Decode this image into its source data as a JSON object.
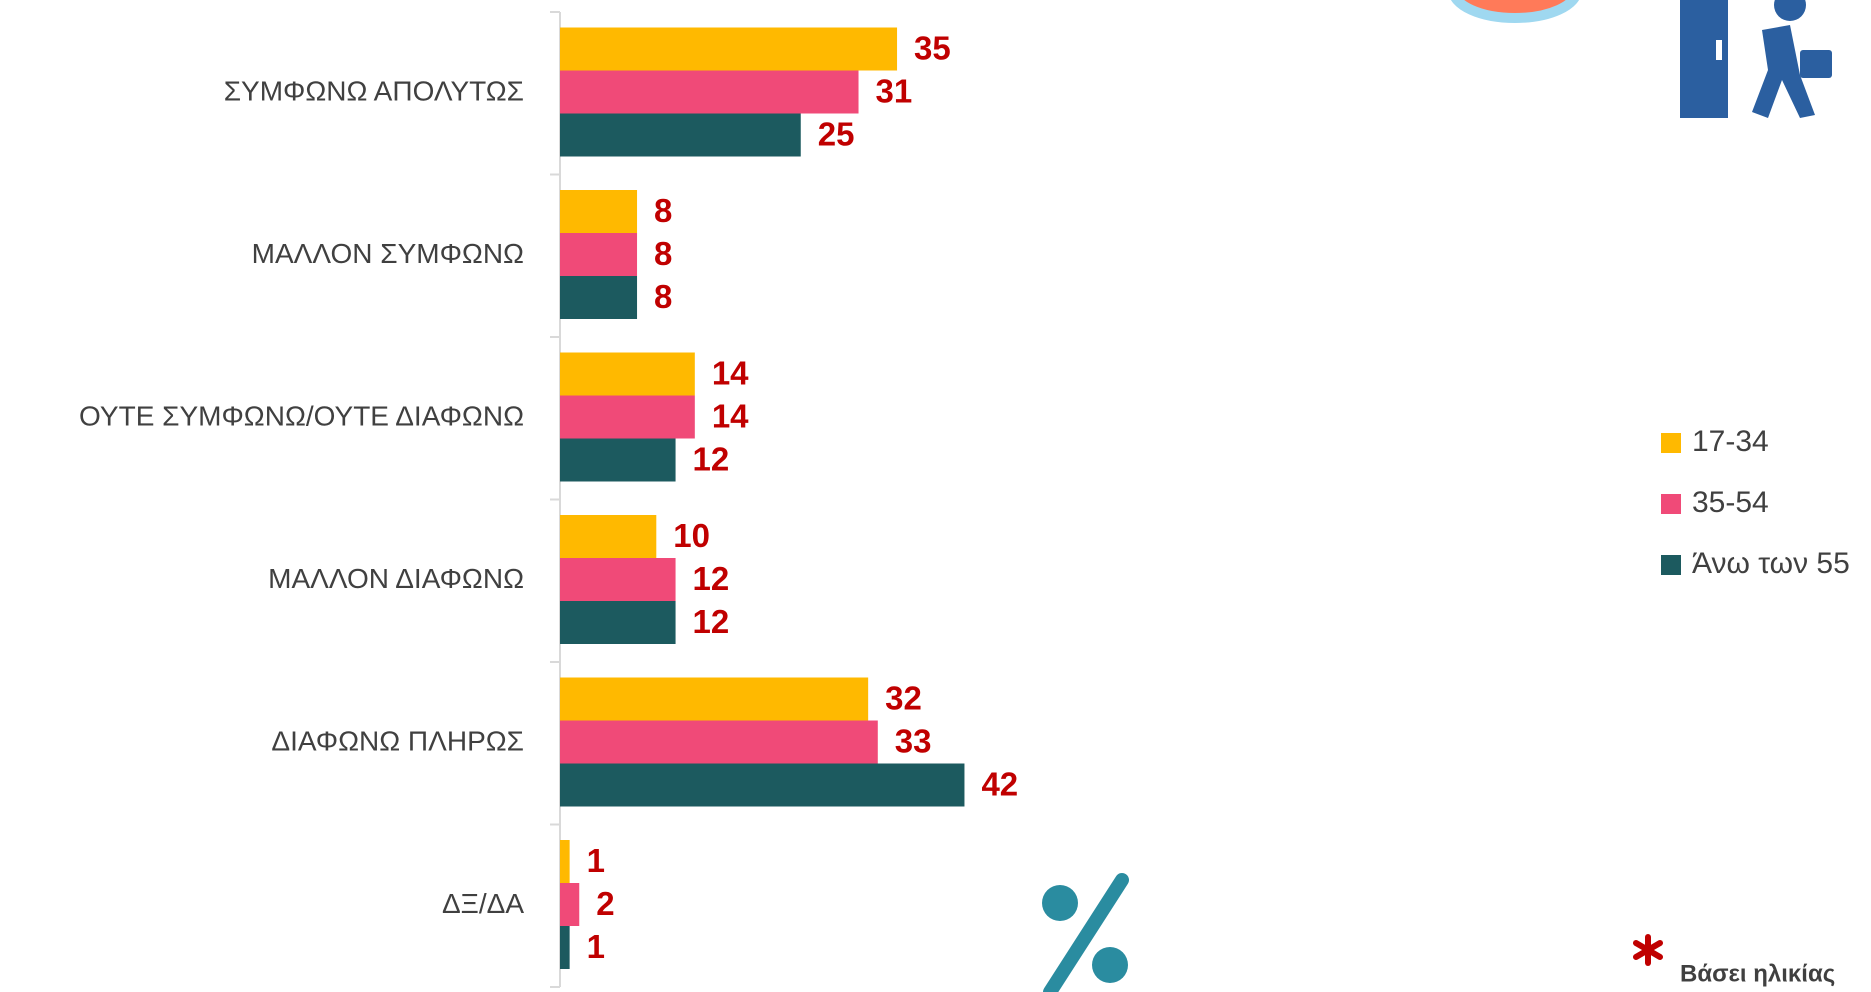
{
  "chart_data": {
    "type": "bar",
    "orientation": "horizontal",
    "categories": [
      "ΣΥΜΦΩΝΩ ΑΠΟΛΥΤΩΣ",
      "ΜΑΛΛΟΝ ΣΥΜΦΩΝΩ",
      "ΟΥΤΕ ΣΥΜΦΩΝΩ/ΟΥΤΕ ΔΙΑΦΩΝΩ",
      "ΜΑΛΛΟΝ ΔΙΑΦΩΝΩ",
      "ΔΙΑΦΩΝΩ ΠΛΗΡΩΣ",
      "ΔΞ/ΔΑ"
    ],
    "series": [
      {
        "name": "17-34",
        "color": "#ffb900",
        "values": [
          35,
          8,
          14,
          10,
          32,
          1
        ]
      },
      {
        "name": "35-54",
        "color": "#f04a78",
        "values": [
          31,
          8,
          14,
          12,
          33,
          2
        ]
      },
      {
        "name": "Άνω των 55",
        "color": "#1c5a5f",
        "values": [
          25,
          8,
          12,
          12,
          42,
          1
        ]
      }
    ],
    "value_label_color": "#c00000",
    "legend": "right",
    "note": "Βάσει ηλικίας"
  }
}
